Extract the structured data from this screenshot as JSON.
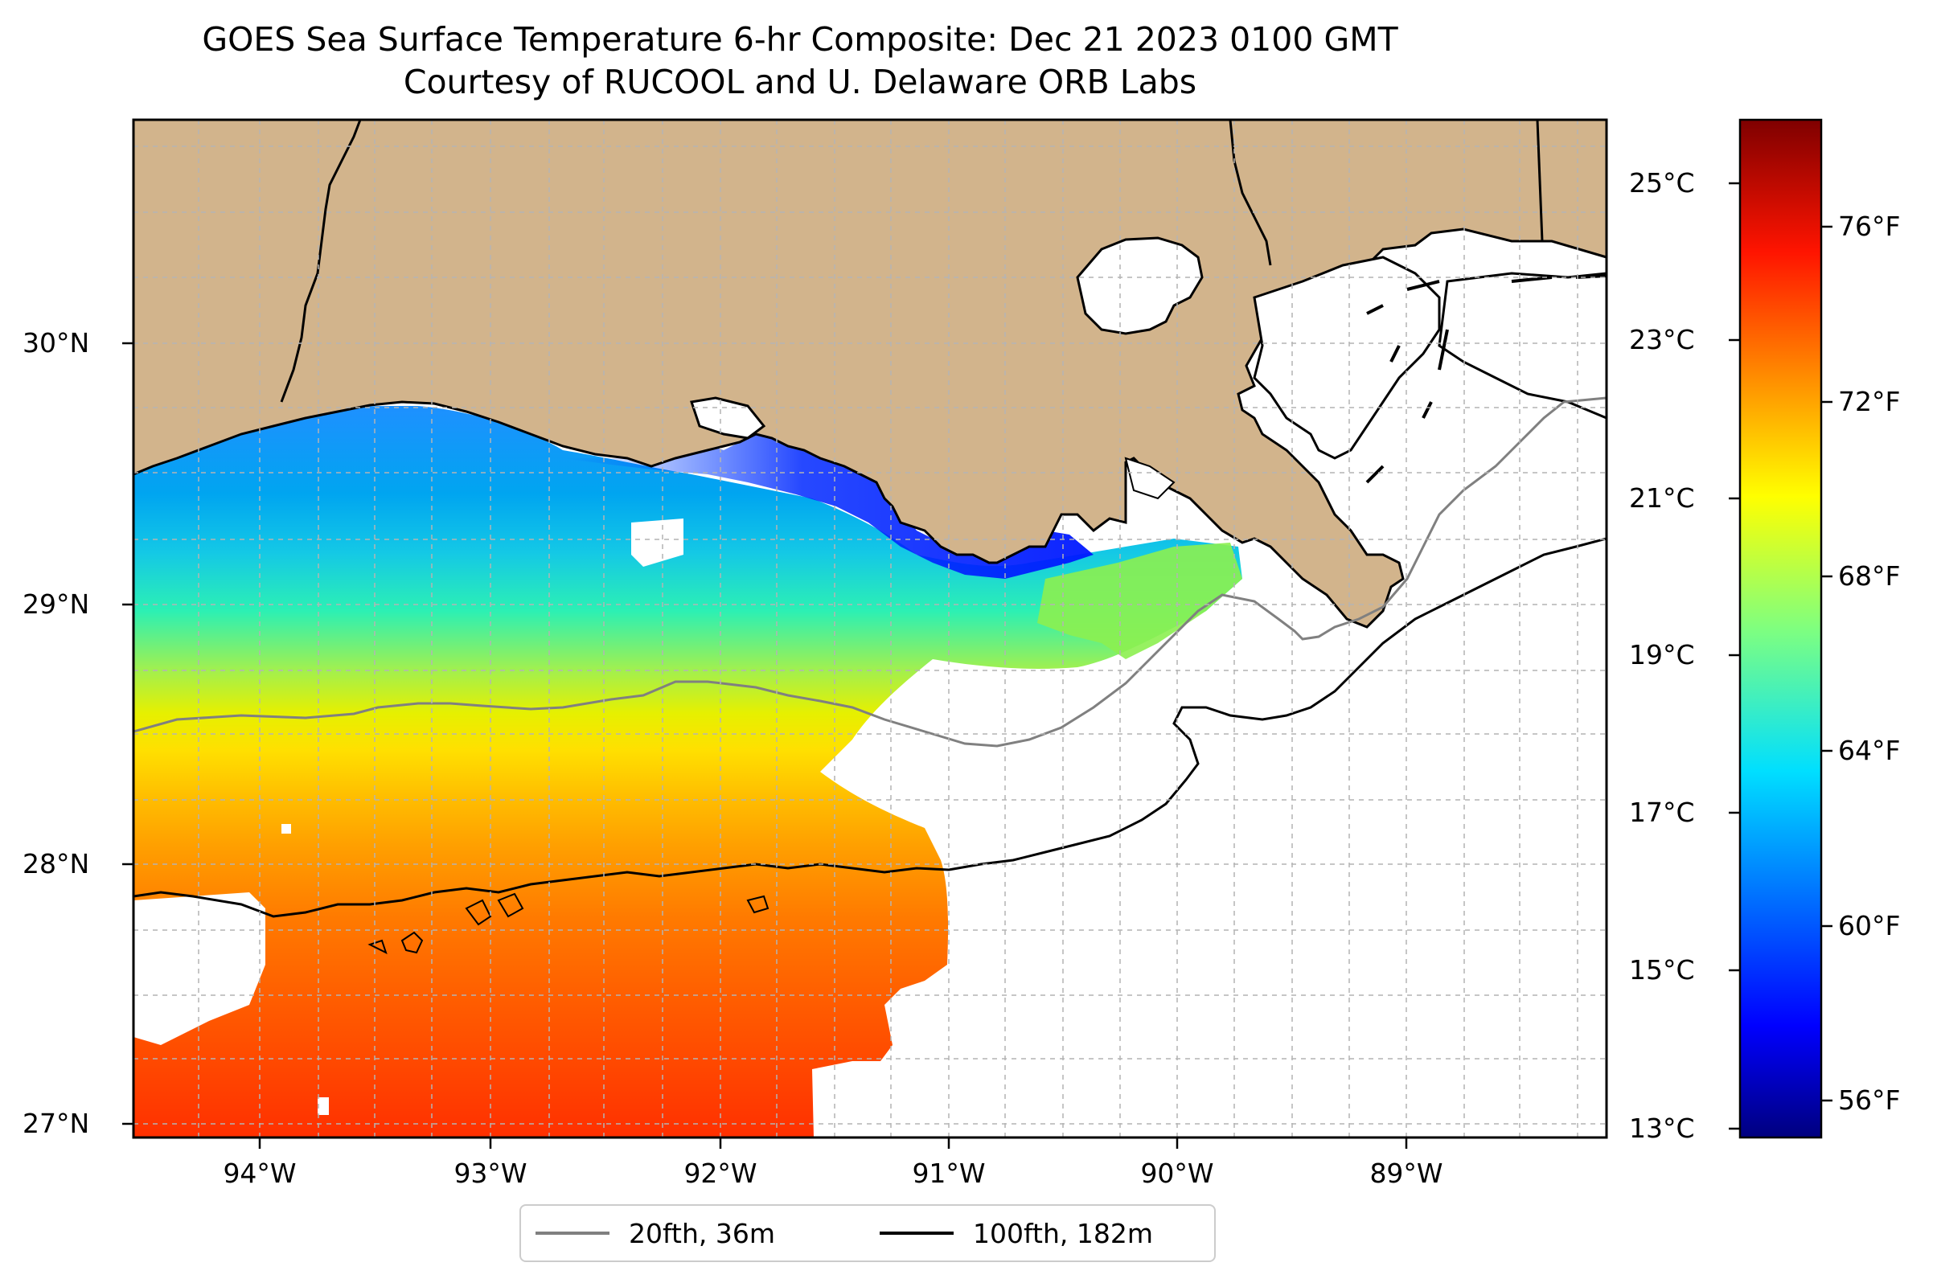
{
  "title": "GOES Sea Surface Temperature 6-hr Composite: Dec 21 2023 0100 GMT",
  "subtitle": "Courtesy of RUCOOL and U. Delaware ORB Labs",
  "colors": {
    "land": "#d2b48c",
    "water_missing": "#ffffff",
    "contour_20fth": "#808080",
    "contour_100fth": "#000000",
    "coastline": "#000000",
    "colormap": "jet"
  },
  "map_extent": {
    "lon": [
      -94.55,
      -88.13
    ],
    "lat": [
      26.93,
      30.86
    ]
  },
  "lat_labels": [
    "30°N",
    "29°N",
    "28°N",
    "27°N"
  ],
  "lon_labels": [
    "94°W",
    "93°W",
    "92°W",
    "91°W",
    "90°W",
    "89°W"
  ],
  "colorbar": {
    "range_c": [
      13,
      26
    ],
    "celsius_labels": [
      "25°C",
      "23°C",
      "21°C",
      "19°C",
      "17°C",
      "15°C",
      "13°C"
    ],
    "fahrenheit_labels": [
      "76°F",
      "72°F",
      "68°F",
      "64°F",
      "60°F",
      "56°F"
    ]
  },
  "legend": [
    {
      "label": "20fth, 36m",
      "color": "#808080"
    },
    {
      "label": "100fth, 182m",
      "color": "#000000"
    }
  ]
}
